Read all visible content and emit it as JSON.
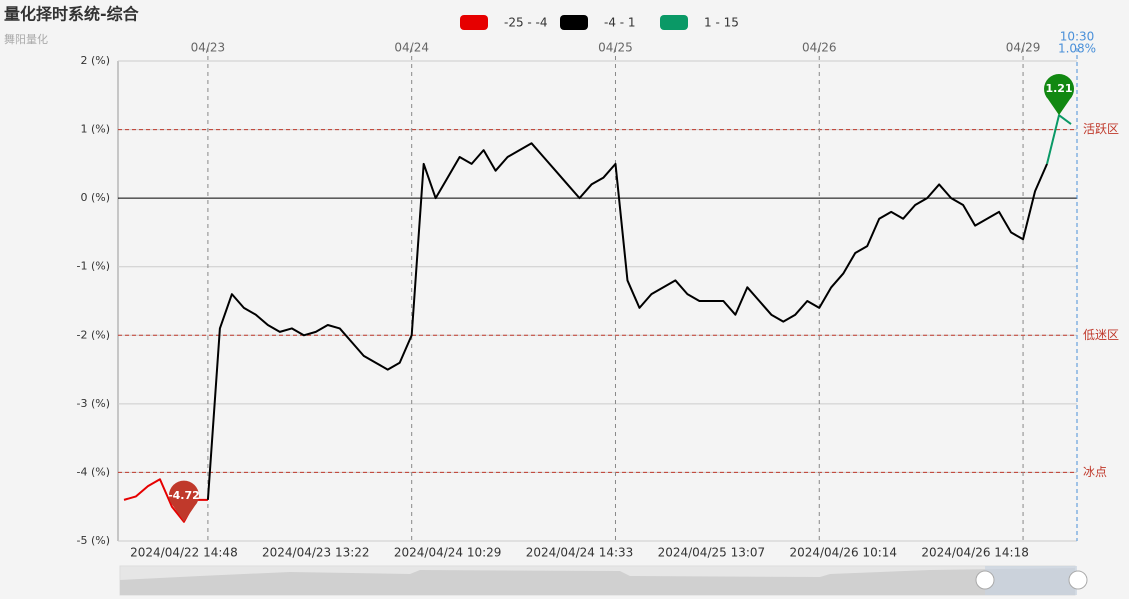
{
  "chart_data": {
    "type": "line",
    "title": "量化择时系统-综合",
    "subtitle": "舞阳量化",
    "pieces": [
      {
        "label": "-25 - -4",
        "min": -25,
        "max": -4,
        "color": "#e60000"
      },
      {
        "label": "-4 - 1",
        "min": -4,
        "max": 1,
        "color": "#000000"
      },
      {
        "label": "1 - 15",
        "min": 1,
        "max": 15,
        "color": "#0a9966"
      }
    ],
    "categories": [
      null,
      null,
      null,
      null,
      null,
      "2024/04/22 14:48",
      null,
      null,
      null,
      null,
      null,
      null,
      null,
      null,
      null,
      null,
      "2024/04/23 13:22",
      null,
      null,
      null,
      null,
      null,
      null,
      null,
      null,
      null,
      null,
      "2024/04/24 10:29",
      null,
      null,
      null,
      null,
      null,
      null,
      null,
      null,
      null,
      null,
      "2024/04/24 14:33",
      null,
      null,
      null,
      null,
      null,
      null,
      null,
      null,
      null,
      null,
      "2024/04/25 13:07",
      null,
      null,
      null,
      null,
      null,
      null,
      null,
      null,
      null,
      null,
      "2024/04/26 10:14",
      null,
      null,
      null,
      null,
      null,
      null,
      null,
      null,
      null,
      null,
      "2024/04/26 14:18",
      null,
      null,
      null,
      null,
      null,
      null,
      null,
      null
    ],
    "day_categories": [
      null,
      null,
      null,
      null,
      null,
      null,
      null,
      "04/23",
      null,
      null,
      null,
      null,
      null,
      null,
      null,
      null,
      null,
      null,
      null,
      null,
      null,
      null,
      null,
      null,
      "04/24",
      null,
      null,
      null,
      null,
      null,
      null,
      null,
      null,
      null,
      null,
      null,
      null,
      null,
      null,
      null,
      null,
      "04/25",
      null,
      null,
      null,
      null,
      null,
      null,
      null,
      null,
      null,
      null,
      null,
      null,
      null,
      null,
      null,
      null,
      "04/26",
      null,
      null,
      null,
      null,
      null,
      null,
      null,
      null,
      null,
      null,
      null,
      null,
      null,
      null,
      null,
      null,
      "04/29",
      null,
      null,
      null,
      null
    ],
    "values": [
      -4.4,
      -4.35,
      -4.2,
      -4.1,
      -4.5,
      -4.72,
      -4.4,
      -4.4,
      -1.9,
      -1.4,
      -1.6,
      -1.7,
      -1.85,
      -1.95,
      -1.9,
      -2.0,
      -1.95,
      -1.85,
      -1.9,
      -2.1,
      -2.3,
      -2.4,
      -2.5,
      -2.4,
      -2.0,
      0.5,
      0.0,
      0.3,
      0.6,
      0.5,
      0.7,
      0.4,
      0.6,
      0.7,
      0.8,
      0.6,
      0.4,
      0.2,
      0.0,
      0.2,
      0.3,
      0.5,
      -1.2,
      -1.6,
      -1.4,
      -1.3,
      -1.2,
      -1.4,
      -1.5,
      -1.5,
      -1.5,
      -1.7,
      -1.3,
      -1.5,
      -1.7,
      -1.8,
      -1.7,
      -1.5,
      -1.6,
      -1.3,
      -1.1,
      -0.8,
      -0.7,
      -0.3,
      -0.2,
      -0.3,
      -0.1,
      0.0,
      0.2,
      0.0,
      -0.1,
      -0.4,
      -0.3,
      -0.2,
      -0.5,
      -0.6,
      0.1,
      0.5,
      1.21,
      1.08
    ],
    "value_labels": [
      null,
      null,
      null,
      null,
      null,
      null,
      null,
      null,
      null,
      null,
      null,
      null,
      null,
      null,
      null,
      null,
      null,
      null,
      null,
      null,
      null,
      null,
      null,
      null,
      null,
      null,
      null,
      null,
      null,
      null,
      null,
      null,
      null,
      null,
      null,
      null,
      null,
      null,
      null,
      null,
      null,
      null,
      null,
      null,
      null,
      null,
      null,
      null,
      null,
      null,
      null,
      null,
      null,
      null,
      null,
      null,
      null,
      null,
      null,
      null,
      null,
      null,
      null,
      null,
      null,
      null,
      null,
      null,
      null,
      null,
      null,
      null,
      null,
      null,
      null,
      null,
      null,
      null,
      null,
      "1.08%"
    ],
    "cursor_label": "10:30",
    "ylim": [
      -5,
      2
    ],
    "yticks": [
      {
        "value": -5,
        "label": "-5 (%)"
      },
      {
        "value": -4,
        "label": "-4 (%)"
      },
      {
        "value": -3,
        "label": "-3 (%)"
      },
      {
        "value": -2,
        "label": "-2 (%)"
      },
      {
        "value": -1,
        "label": "-1 (%)"
      },
      {
        "value": 0,
        "label": "0 (%)"
      },
      {
        "value": 1,
        "label": "1 (%)"
      },
      {
        "value": 2,
        "label": "2 (%)"
      }
    ],
    "reference_lines": [
      {
        "value": 1,
        "label": "活跃区"
      },
      {
        "value": -2,
        "label": "低迷区"
      },
      {
        "value": -4,
        "label": "冰点"
      }
    ],
    "reference_color": "#c0392b",
    "grid": true
  }
}
